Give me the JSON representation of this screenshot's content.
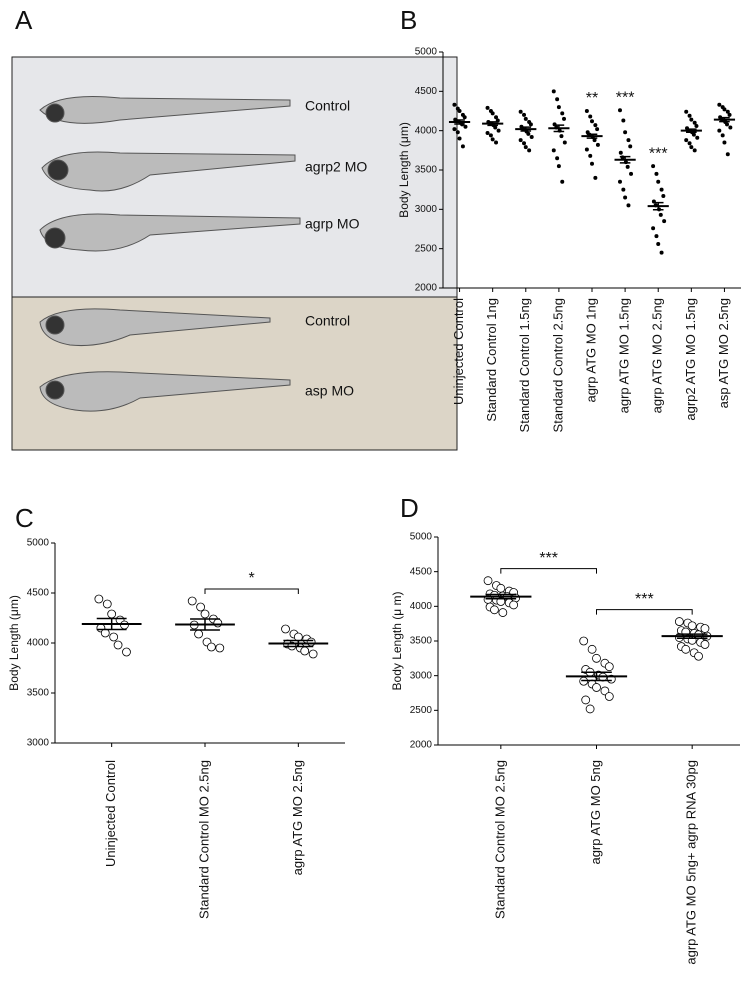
{
  "image_panel": {
    "panel": "A",
    "labels": [
      "Control",
      "agrp2 MO",
      "agrp MO",
      "Control",
      "asp MO"
    ]
  },
  "chart_data": [
    {
      "type": "dotplot",
      "panel": "B",
      "y_label": "Body Length (μm)",
      "marker": "filled",
      "significance_style": "star",
      "categories": [
        "Uninjected Control",
        "Standard Control 1ng",
        "Standard Control 1.5ng",
        "Standard Control 2.5ng",
        "agrp ATG MO 1ng",
        "agrp ATG MO 1.5ng",
        "agrp ATG MO 2.5ng",
        "agrp2 ATG MO 1.5ng",
        "asp ATG MO 2.5ng"
      ],
      "points": [
        [
          4330,
          4280,
          4250,
          4200,
          4170,
          4140,
          4120,
          4100,
          4080,
          4050,
          4020,
          3980,
          3900,
          3800
        ],
        [
          4290,
          4250,
          4220,
          4170,
          4130,
          4110,
          4090,
          4070,
          4040,
          4000,
          3970,
          3940,
          3890,
          3850
        ],
        [
          4240,
          4200,
          4150,
          4110,
          4080,
          4050,
          4020,
          3990,
          3960,
          3920,
          3880,
          3840,
          3790,
          3750
        ],
        [
          4500,
          4400,
          4300,
          4220,
          4150,
          4080,
          4040,
          4000,
          3930,
          3850,
          3750,
          3650,
          3550,
          3350
        ],
        [
          4250,
          4180,
          4120,
          4070,
          4020,
          3980,
          3950,
          3920,
          3880,
          3820,
          3760,
          3680,
          3580,
          3400
        ],
        [
          4260,
          4130,
          3980,
          3880,
          3800,
          3720,
          3660,
          3600,
          3540,
          3450,
          3350,
          3250,
          3150,
          3050
        ],
        [
          3550,
          3450,
          3350,
          3250,
          3170,
          3100,
          3050,
          3000,
          2930,
          2850,
          2760,
          2660,
          2560,
          2450
        ],
        [
          4240,
          4190,
          4140,
          4100,
          4060,
          4030,
          4000,
          3980,
          3950,
          3910,
          3880,
          3840,
          3790,
          3750
        ],
        [
          4330,
          4300,
          4270,
          4240,
          4200,
          4170,
          4140,
          4110,
          4080,
          4040,
          4000,
          3940,
          3850,
          3700
        ]
      ],
      "means": [
        4110,
        4090,
        4020,
        4030,
        3930,
        3630,
        3040,
        4000,
        4140
      ],
      "errors": [
        25,
        22,
        25,
        40,
        25,
        40,
        45,
        20,
        25
      ],
      "significance": [
        null,
        null,
        null,
        null,
        "**",
        "***",
        "***",
        null,
        null
      ],
      "ylim": [
        2000,
        5000
      ],
      "yticks": [
        2000,
        2500,
        3000,
        3500,
        4000,
        4500,
        5000
      ]
    },
    {
      "type": "dotplot",
      "panel": "C",
      "y_label": "Body Length (μm)",
      "marker": "open",
      "significance_style": "bracket",
      "categories": [
        "Uninjected Control",
        "Standard Control MO 2.5ng",
        "agrp ATG MO 2.5ng"
      ],
      "points": [
        [
          4440,
          4390,
          4290,
          4230,
          4180,
          4150,
          4100,
          4060,
          3980,
          3910
        ],
        [
          4420,
          4360,
          4290,
          4240,
          4200,
          4180,
          4090,
          4010,
          3960,
          3950
        ],
        [
          4140,
          4090,
          4060,
          4040,
          4010,
          3990,
          3970,
          3950,
          3920,
          3890
        ]
      ],
      "means": [
        4190,
        4185,
        3995
      ],
      "errors": [
        55,
        55,
        30
      ],
      "significance": [
        null,
        null,
        "*"
      ],
      "ylim": [
        3000,
        5000
      ],
      "yticks": [
        3000,
        3500,
        4000,
        4500,
        5000
      ]
    },
    {
      "type": "dotplot",
      "panel": "D",
      "y_label": "Body Length (μ m)",
      "marker": "open",
      "significance_style": "bracket",
      "categories": [
        "Standard Control MO 2.5ng",
        "agrp ATG MO 5ng",
        "agrp ATG MO 5ng+ agrp RNA 30pg"
      ],
      "points": [
        [
          4370,
          4300,
          4260,
          4220,
          4200,
          4180,
          4160,
          4150,
          4140,
          4120,
          4100,
          4090,
          4070,
          4050,
          4020,
          3990,
          3950,
          3910
        ],
        [
          3500,
          3380,
          3250,
          3180,
          3130,
          3090,
          3050,
          3010,
          2980,
          2950,
          2920,
          2880,
          2830,
          2780,
          2700,
          2650,
          2520
        ],
        [
          3780,
          3760,
          3720,
          3700,
          3680,
          3650,
          3630,
          3610,
          3590,
          3570,
          3550,
          3530,
          3510,
          3480,
          3450,
          3420,
          3380,
          3330,
          3280
        ]
      ],
      "means": [
        4140,
        2990,
        3570
      ],
      "errors": [
        30,
        60,
        30
      ],
      "significance": [
        null,
        "***",
        "***"
      ],
      "ylim": [
        2000,
        5000
      ],
      "yticks": [
        2000,
        2500,
        3000,
        3500,
        4000,
        4500,
        5000
      ]
    }
  ]
}
